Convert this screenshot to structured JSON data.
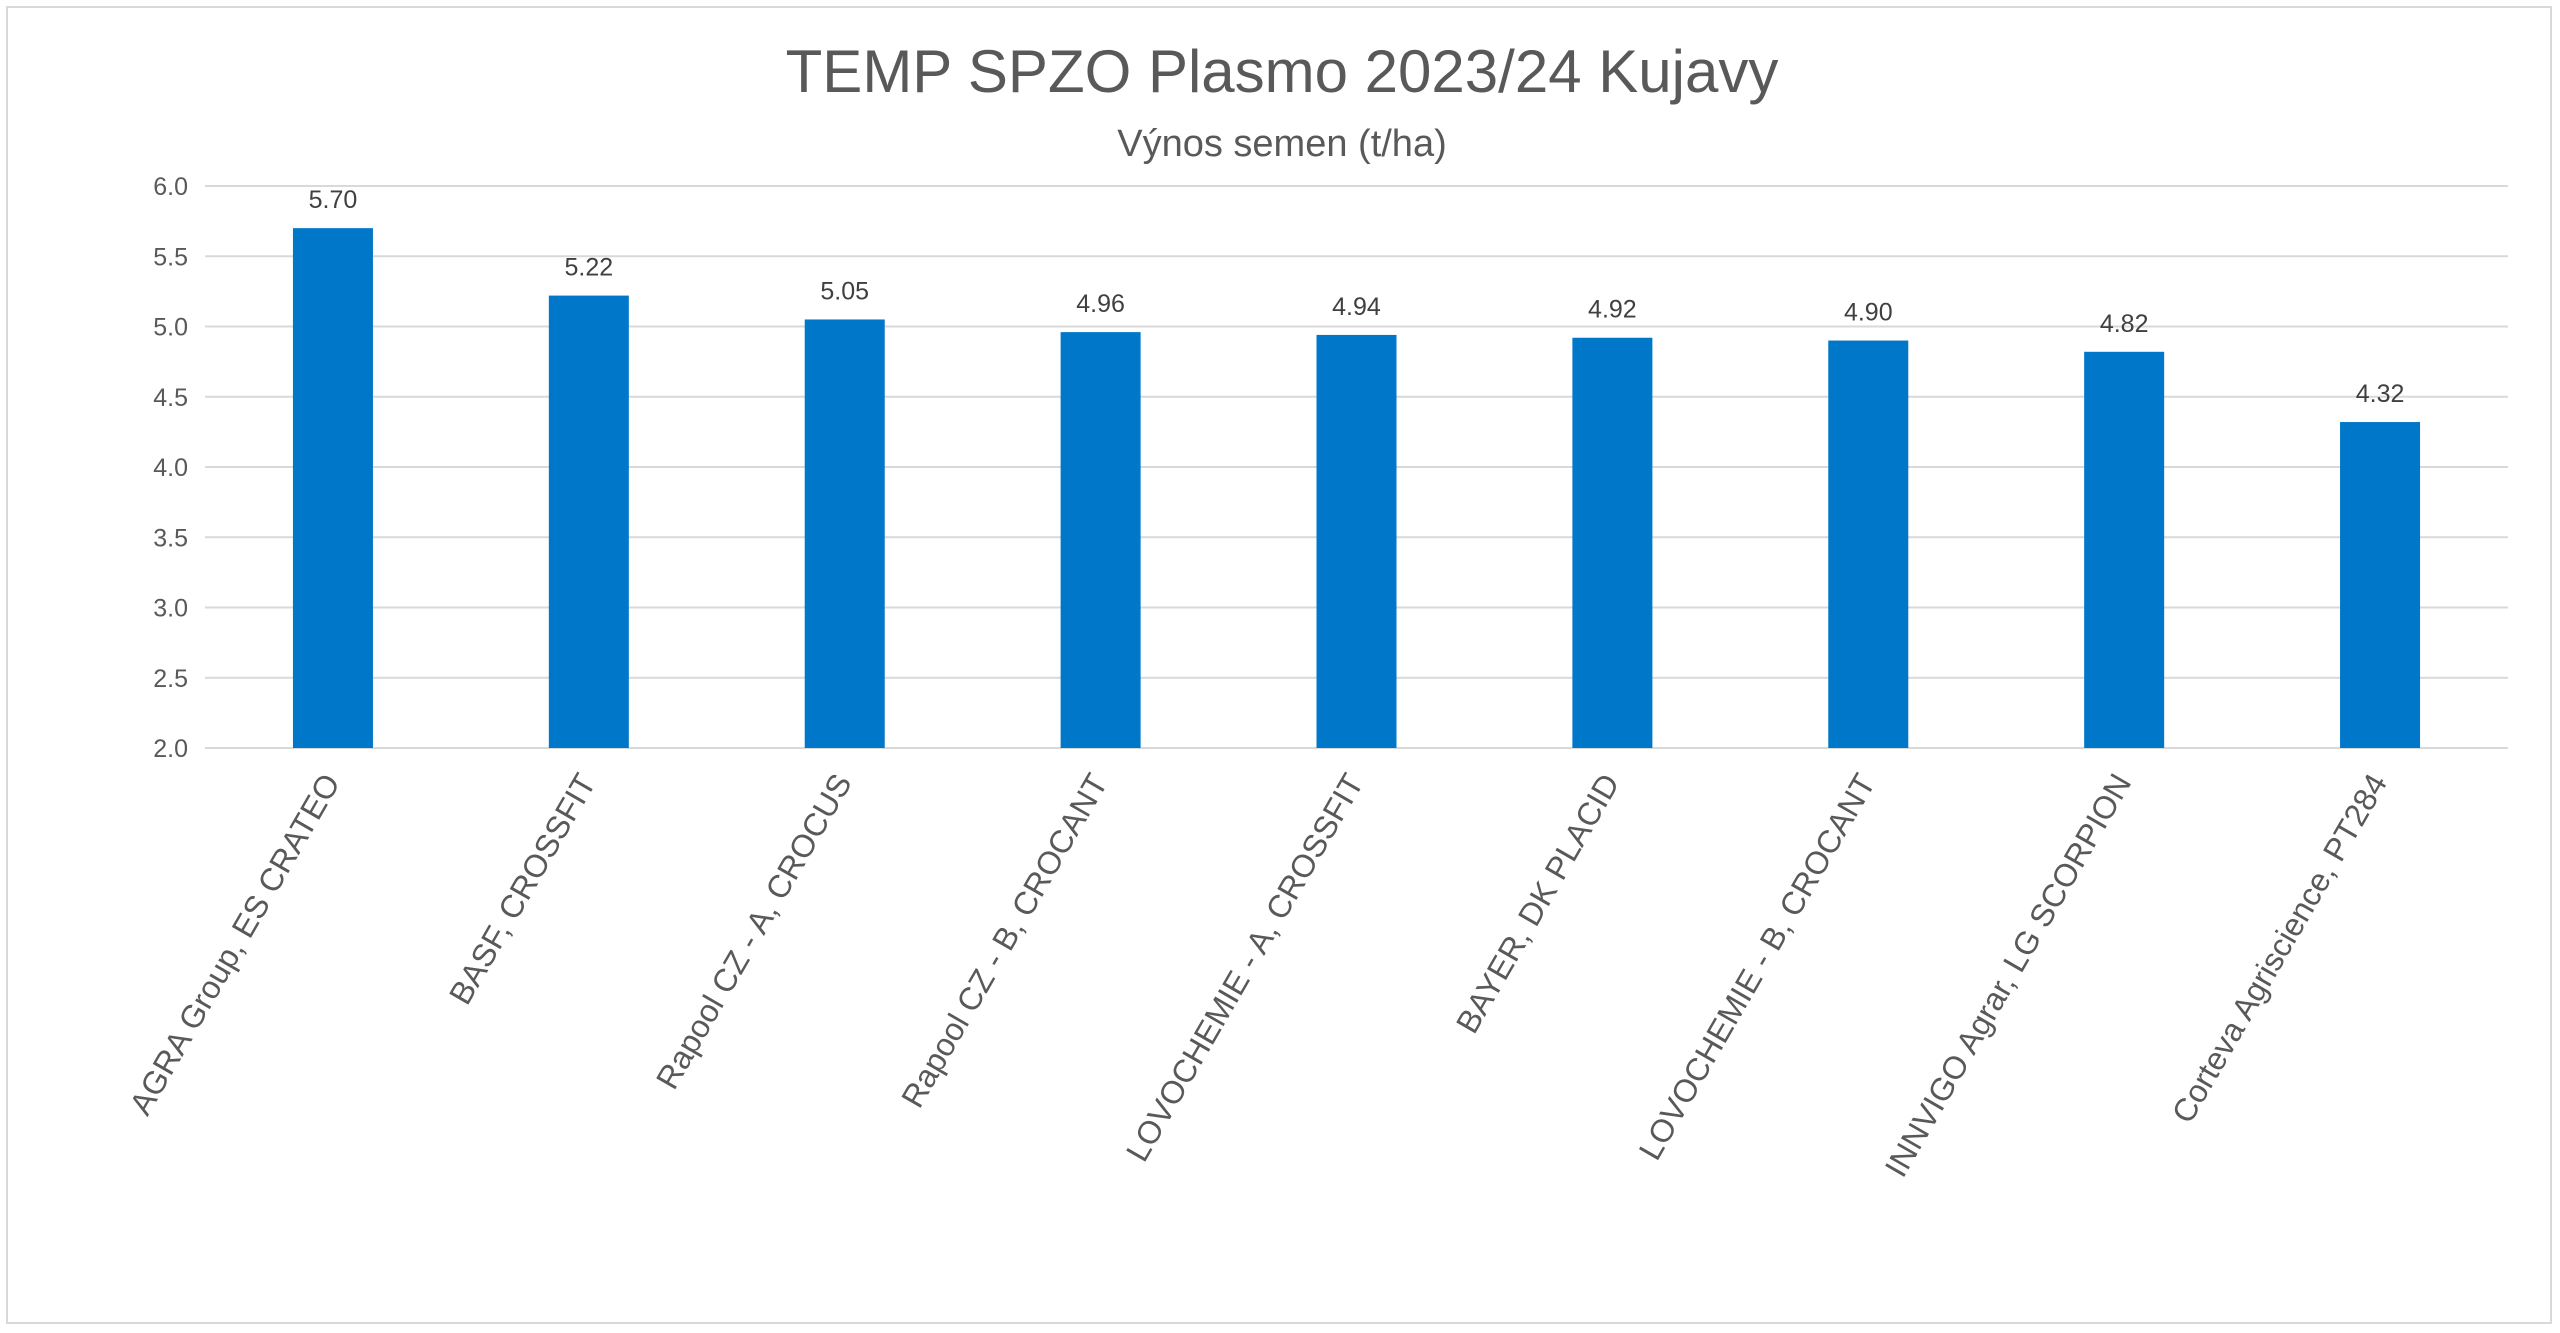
{
  "chart_data": {
    "type": "bar",
    "title": "TEMP SPZO Plasmo 2023/24 Kujavy",
    "subtitle": "Výnos semen (t/ha)",
    "xlabel": "",
    "ylabel": "",
    "categories": [
      "AGRA Group, ES CRATEO",
      "BASF, CROSSFIT",
      "Rapool CZ - A, CROCUS",
      "Rapool CZ - B, CROCANT",
      "LOVOCHEMIE - A, CROSSFIT",
      "BAYER, DK PLACID",
      "LOVOCHEMIE - B, CROCANT",
      "INNVIGO Agrar, LG SCORPION",
      "Corteva Agriscience, PT284"
    ],
    "values": [
      5.7,
      5.22,
      5.05,
      4.96,
      4.94,
      4.92,
      4.9,
      4.82,
      4.32
    ],
    "data_labels": [
      "5.70",
      "5.22",
      "5.05",
      "4.96",
      "4.94",
      "4.92",
      "4.90",
      "4.82",
      "4.32"
    ],
    "ylim": [
      2.0,
      6.0
    ],
    "yticks": [
      2.0,
      2.5,
      3.0,
      3.5,
      4.0,
      4.5,
      5.0,
      5.5,
      6.0
    ],
    "ytick_labels": [
      "2.0",
      "2.5",
      "3.0",
      "3.5",
      "4.0",
      "4.5",
      "5.0",
      "5.5",
      "6.0"
    ],
    "grid": true,
    "legend": "none",
    "bar_color": "#0077C8"
  }
}
